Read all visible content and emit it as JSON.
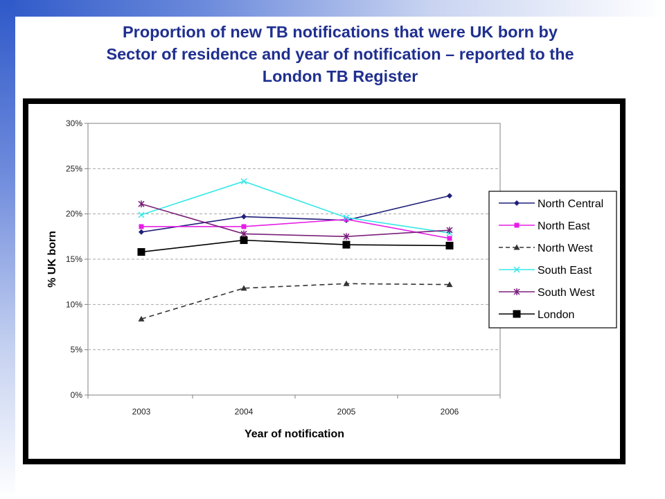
{
  "slide": {
    "title_lines": [
      "Proportion of new TB notifications that were UK born by",
      "Sector of residence and year of notification – reported to the",
      "London TB Register"
    ]
  },
  "colors": {
    "title": "#1f2f8f",
    "band": "#2f59c9",
    "frame": "#000000",
    "plot_border": "#808080",
    "gridline": "#a6a6a6"
  },
  "chart_data": {
    "type": "line",
    "xlabel": "Year of notification",
    "ylabel": "% UK born",
    "categories": [
      "2003",
      "2004",
      "2005",
      "2006"
    ],
    "ylim": [
      0,
      30
    ],
    "yticks": [
      0,
      5,
      10,
      15,
      20,
      25,
      30
    ],
    "ytick_labels": [
      "0%",
      "5%",
      "10%",
      "15%",
      "20%",
      "25%",
      "30%"
    ],
    "grid": "horizontal dashed",
    "legend_position": "right",
    "series": [
      {
        "name": "North Central",
        "values": [
          18.0,
          19.7,
          19.3,
          22.0
        ],
        "color": "#1f1f7a",
        "marker": "diamond",
        "dash": "solid"
      },
      {
        "name": "North East",
        "values": [
          18.6,
          18.6,
          19.4,
          17.3
        ],
        "color": "#e51ee5",
        "marker": "square",
        "dash": "solid"
      },
      {
        "name": "North West",
        "values": [
          8.4,
          11.8,
          12.3,
          12.2
        ],
        "color": "#333333",
        "marker": "triangle",
        "dash": "dashed"
      },
      {
        "name": "South East",
        "values": [
          19.9,
          23.6,
          19.6,
          17.9
        ],
        "color": "#33e8e8",
        "marker": "x",
        "dash": "solid"
      },
      {
        "name": "South West",
        "values": [
          21.1,
          17.8,
          17.5,
          18.2
        ],
        "color": "#7a1f7a",
        "marker": "star",
        "dash": "solid"
      },
      {
        "name": "London",
        "values": [
          15.8,
          17.1,
          16.6,
          16.5
        ],
        "color": "#000000",
        "marker": "bigsquare",
        "dash": "solid"
      }
    ]
  }
}
